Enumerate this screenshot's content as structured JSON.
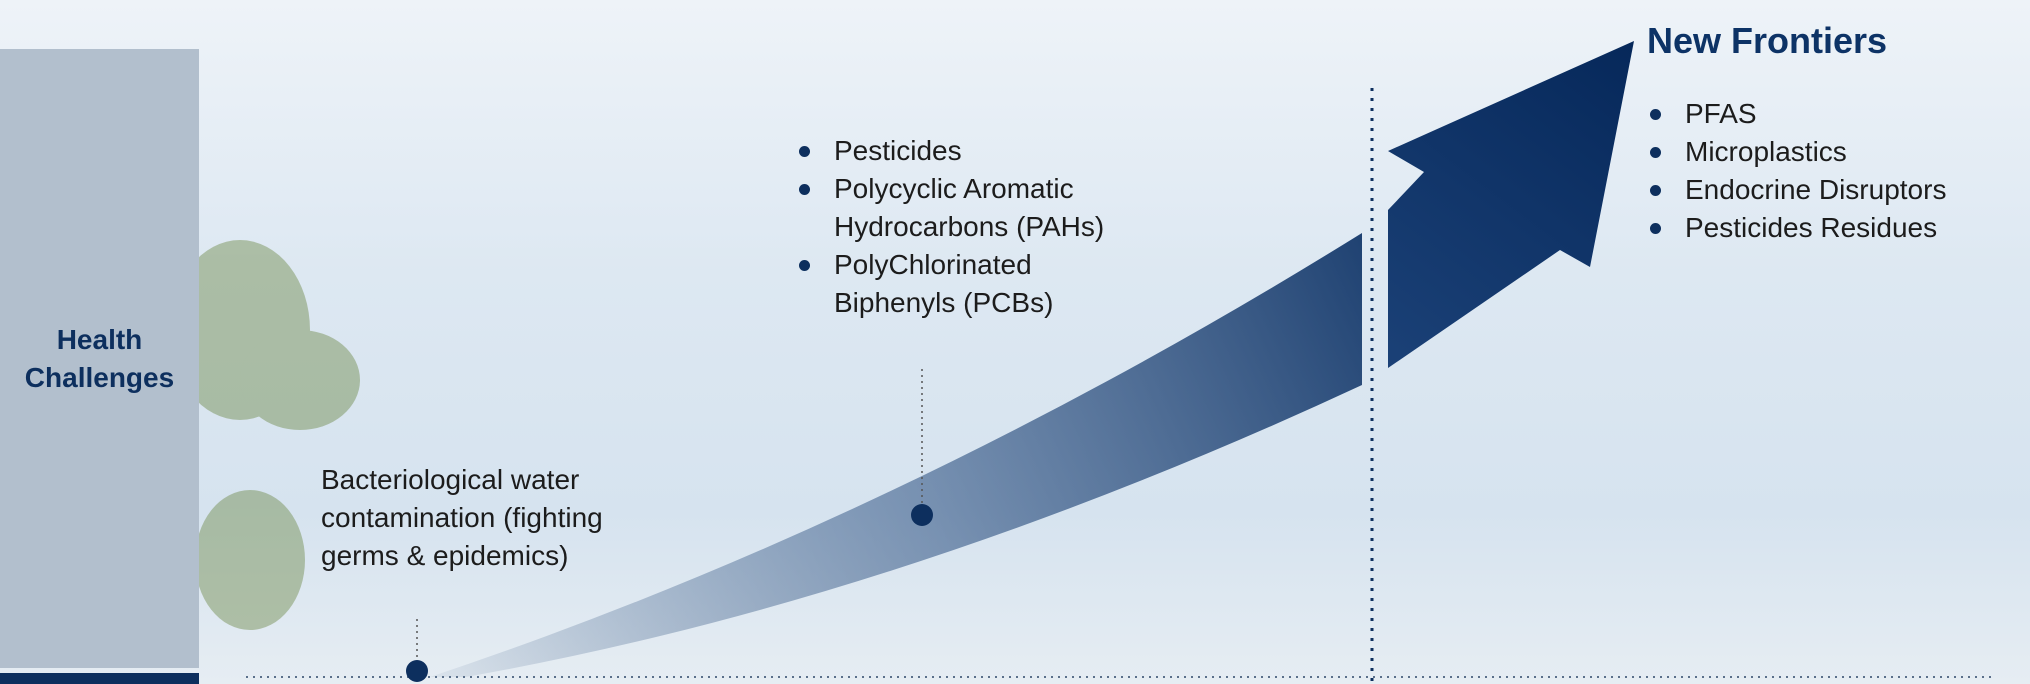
{
  "panel": {
    "label": "Health Challenges"
  },
  "milestones": [
    {
      "label": "Bacteriological water contamination (fighting germs & epidemics)"
    },
    {
      "items": [
        "Pesticides",
        "Polycyclic Aromatic Hydrocarbons (PAHs)",
        "PolyChlorinated Biphenyls (PCBs)"
      ]
    }
  ],
  "frontiers": {
    "title": "New Frontiers",
    "items": [
      "PFAS",
      "Microplastics",
      "Endocrine Disruptors",
      "Pesticides Residues"
    ]
  }
}
